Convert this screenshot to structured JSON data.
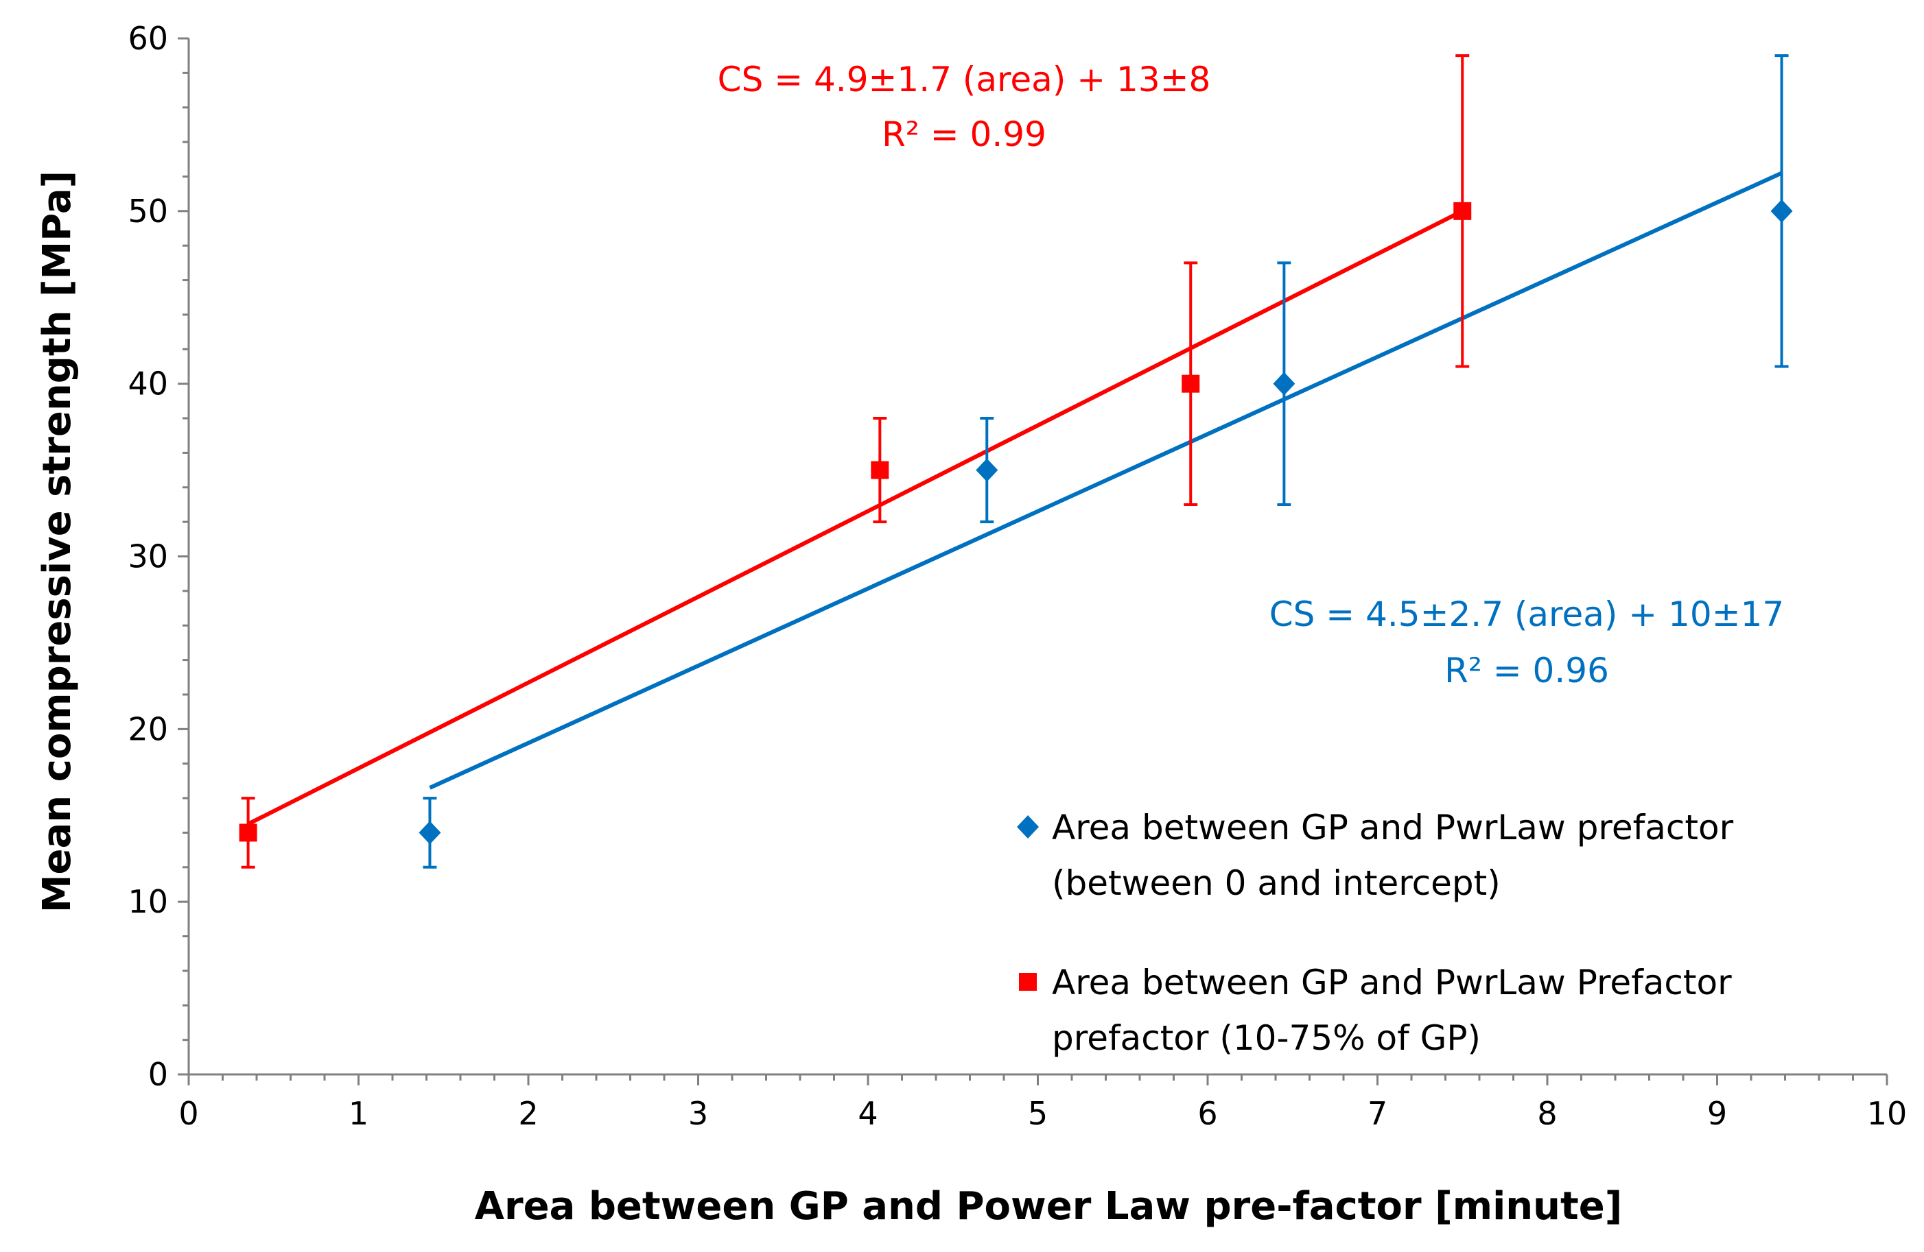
{
  "chart_data": {
    "type": "scatter",
    "title": "",
    "xlabel": "Area between GP and Power Law pre-factor [minute]",
    "ylabel": "Mean compressive strength [MPa]",
    "xlim": [
      0,
      10
    ],
    "ylim": [
      0,
      60
    ],
    "x_ticks": [
      "0",
      "1",
      "2",
      "3",
      "4",
      "5",
      "6",
      "7",
      "8",
      "9",
      "10"
    ],
    "y_ticks": [
      "0",
      "10",
      "20",
      "30",
      "40",
      "50",
      "60"
    ],
    "grid": false,
    "legend_position": "bottom-right",
    "series": [
      {
        "name_line1": "Area between GP and PwrLaw prefactor",
        "name_line2": "(between 0 and intercept)",
        "color": "#0070C0",
        "marker": "diamond",
        "points": [
          {
            "x": 1.42,
            "y": 14,
            "err_low": 12,
            "err_high": 16
          },
          {
            "x": 4.7,
            "y": 35,
            "err_low": 32,
            "err_high": 38
          },
          {
            "x": 6.45,
            "y": 40,
            "err_low": 33,
            "err_high": 47
          },
          {
            "x": 9.38,
            "y": 50,
            "err_low": 41,
            "err_high": 59
          }
        ],
        "trendline": {
          "x_start": 1.42,
          "x_end": 9.38,
          "y_start": 16.6,
          "y_end": 52.2
        }
      },
      {
        "name_line1": "Area between GP and PwrLaw Prefactor",
        "name_line2": "prefactor (10-75% of GP)",
        "color": "#FF0000",
        "marker": "square",
        "points": [
          {
            "x": 0.35,
            "y": 14,
            "err_low": 12,
            "err_high": 16
          },
          {
            "x": 4.07,
            "y": 35,
            "err_low": 32,
            "err_high": 38
          },
          {
            "x": 5.9,
            "y": 40,
            "err_low": 33,
            "err_high": 47
          },
          {
            "x": 7.5,
            "y": 50,
            "err_low": 41,
            "err_high": 59
          }
        ],
        "trendline": {
          "x_start": 0.35,
          "x_end": 7.5,
          "y_start": 14.5,
          "y_end": 50
        }
      }
    ],
    "annotations": {
      "red_equation": "CS = 4.9±1.7 (area) + 13±8",
      "red_r2": "R² = 0.99",
      "blue_equation": "CS = 4.5±2.7 (area) + 10±17",
      "blue_r2": "R² = 0.96"
    }
  }
}
